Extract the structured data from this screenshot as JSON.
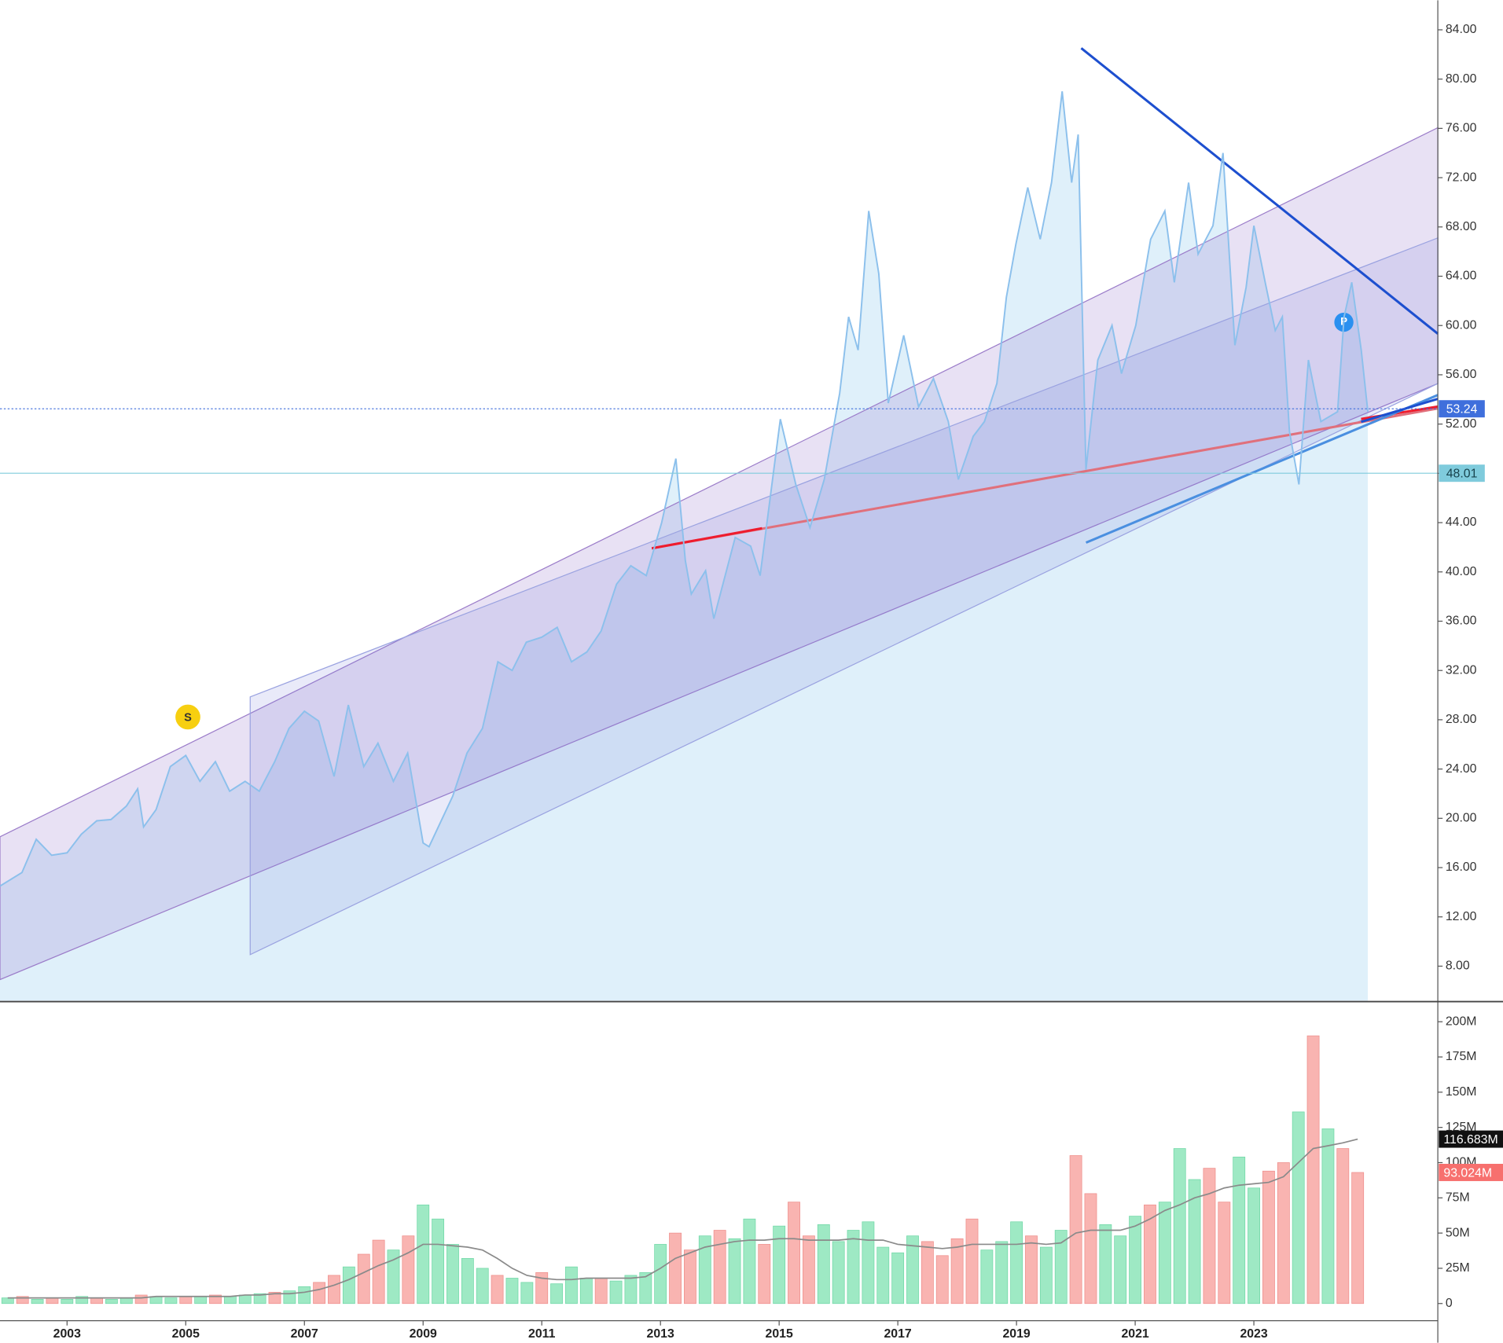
{
  "chart_data": [
    {
      "type": "area",
      "color": "#8cc0ec",
      "fill": "#dff0fa",
      "xlim": [
        2001.87,
        2026.1
      ],
      "ylim": [
        5.2,
        86.4
      ],
      "yticks": [
        {
          "value": 8,
          "label": "8.00"
        },
        {
          "value": 12,
          "label": "12.00"
        },
        {
          "value": 16,
          "label": "16.00"
        },
        {
          "value": 20,
          "label": "20.00"
        },
        {
          "value": 24,
          "label": "24.00"
        },
        {
          "value": 28,
          "label": "28.00"
        },
        {
          "value": 32,
          "label": "32.00"
        },
        {
          "value": 36,
          "label": "36.00"
        },
        {
          "value": 40,
          "label": "40.00"
        },
        {
          "value": 44,
          "label": "44.00"
        },
        {
          "value": 48,
          "label": "48.00"
        },
        {
          "value": 52,
          "label": "52.00"
        },
        {
          "value": 56,
          "label": "56.00"
        },
        {
          "value": 60,
          "label": "60.00"
        },
        {
          "value": 64,
          "label": "64.00"
        },
        {
          "value": 68,
          "label": "68.00"
        },
        {
          "value": 72,
          "label": "72.00"
        },
        {
          "value": 76,
          "label": "76.00"
        },
        {
          "value": 80,
          "label": "80.00"
        },
        {
          "value": 84,
          "label": "84.00"
        }
      ],
      "x": [
        2001.87,
        2002.24,
        2002.48,
        2002.74,
        2003.0,
        2003.24,
        2003.5,
        2003.74,
        2004.0,
        2004.19,
        2004.29,
        2004.5,
        2004.74,
        2005.0,
        2005.24,
        2005.5,
        2005.74,
        2006.0,
        2006.24,
        2006.5,
        2006.74,
        2007.0,
        2007.24,
        2007.5,
        2007.74,
        2008.0,
        2008.24,
        2008.5,
        2008.74,
        2009.0,
        2009.1,
        2009.5,
        2009.74,
        2010.0,
        2010.26,
        2010.5,
        2010.74,
        2011.0,
        2011.26,
        2011.5,
        2011.76,
        2012.0,
        2012.26,
        2012.5,
        2012.76,
        2013.02,
        2013.26,
        2013.42,
        2013.52,
        2013.76,
        2013.9,
        2014.26,
        2014.52,
        2014.68,
        2015.02,
        2015.28,
        2015.52,
        2015.76,
        2016.02,
        2016.17,
        2016.33,
        2016.51,
        2016.68,
        2016.84,
        2017.1,
        2017.35,
        2017.6,
        2017.85,
        2018.02,
        2018.27,
        2018.46,
        2018.67,
        2018.83,
        2018.99,
        2019.19,
        2019.4,
        2019.59,
        2019.77,
        2019.93,
        2020.04,
        2020.17,
        2020.37,
        2020.61,
        2020.77,
        2021.01,
        2021.26,
        2021.5,
        2021.66,
        2021.9,
        2022.06,
        2022.31,
        2022.48,
        2022.68,
        2022.87,
        2023.0,
        2023.19,
        2023.36,
        2023.48,
        2023.6,
        2023.76,
        2023.92,
        2024.13,
        2024.41,
        2024.52,
        2024.65,
        2024.81,
        2024.92
      ],
      "values": [
        14.5,
        15.6,
        18.3,
        17,
        17.2,
        18.7,
        19.8,
        19.9,
        21,
        22.4,
        19.3,
        20.7,
        24.2,
        25.1,
        23,
        24.6,
        22.2,
        23,
        22.2,
        24.6,
        27.3,
        28.7,
        27.9,
        23.4,
        29.2,
        24.2,
        26.1,
        23,
        25.3,
        18,
        17.7,
        21.8,
        25.3,
        27.3,
        32.7,
        32,
        34.3,
        34.7,
        35.5,
        32.7,
        33.5,
        35.2,
        39,
        40.5,
        39.7,
        44,
        49.2,
        40.9,
        38.2,
        40.1,
        36.2,
        42.8,
        42.1,
        39.7,
        52.4,
        47.1,
        43.6,
        47.5,
        54.5,
        60.7,
        58,
        69.3,
        64.2,
        53.7,
        59.2,
        53.4,
        55.7,
        52.2,
        47.5,
        51,
        52.2,
        55.3,
        62.3,
        66.6,
        71.2,
        67,
        71.6,
        79,
        71.6,
        75.5,
        48.3,
        57.2,
        60,
        56.1,
        60,
        67,
        69.3,
        63.5,
        71.6,
        65.8,
        68.1,
        74,
        58.4,
        63.1,
        68.1,
        63.5,
        59.6,
        60.7,
        51.4,
        47.1,
        57.2,
        52.2,
        53,
        60.7,
        63.5,
        58,
        53
      ],
      "markers": [
        {
          "value": 53.24,
          "color": "#3f6fdc",
          "dashed": true
        },
        {
          "value": 48.01,
          "color": "#7fcbdc",
          "dashed": false
        }
      ]
    },
    {
      "type": "bar",
      "xlim": [
        2001.87,
        2026.1
      ],
      "xticks": [
        2003,
        2005,
        2007,
        2009,
        2011,
        2013,
        2015,
        2017,
        2019,
        2021,
        2023
      ],
      "ylim": [
        -12.2,
        213.6
      ],
      "yticks": [
        0,
        {
          "value": 25,
          "label": "25M"
        },
        {
          "value": 50,
          "label": "50M"
        },
        {
          "value": 75,
          "label": "75M"
        },
        {
          "value": 100,
          "label": "100M"
        },
        {
          "value": 125,
          "label": "125M"
        },
        {
          "value": 150,
          "label": "150M"
        },
        {
          "value": 175,
          "label": "175M"
        },
        {
          "value": 200,
          "label": "200M"
        }
      ],
      "x": [
        2002.0,
        2002.25,
        2002.5,
        2002.75,
        2003.0,
        2003.25,
        2003.5,
        2003.75,
        2004.0,
        2004.25,
        2004.5,
        2004.75,
        2005.0,
        2005.25,
        2005.5,
        2005.75,
        2006.0,
        2006.25,
        2006.5,
        2006.75,
        2007.0,
        2007.25,
        2007.5,
        2007.75,
        2008.0,
        2008.25,
        2008.5,
        2008.75,
        2009.0,
        2009.25,
        2009.5,
        2009.75,
        2010.0,
        2010.25,
        2010.5,
        2010.75,
        2011.0,
        2011.25,
        2011.5,
        2011.75,
        2012.0,
        2012.25,
        2012.5,
        2012.75,
        2013.0,
        2013.25,
        2013.5,
        2013.75,
        2014.0,
        2014.25,
        2014.5,
        2014.75,
        2015.0,
        2015.25,
        2015.5,
        2015.75,
        2016.0,
        2016.25,
        2016.5,
        2016.75,
        2017.0,
        2017.25,
        2017.5,
        2017.75,
        2018.0,
        2018.25,
        2018.5,
        2018.75,
        2019.0,
        2019.25,
        2019.5,
        2019.75,
        2020.0,
        2020.25,
        2020.5,
        2020.75,
        2021.0,
        2021.25,
        2021.5,
        2021.75,
        2022.0,
        2022.25,
        2022.5,
        2022.75,
        2023.0,
        2023.25,
        2023.5,
        2023.75,
        2024.0,
        2024.25,
        2024.5,
        2024.75
      ],
      "values": [
        4,
        5,
        3,
        4,
        3,
        5,
        4,
        3,
        4,
        6,
        5,
        4,
        5,
        5,
        6,
        5,
        6,
        7,
        8,
        9,
        12,
        15,
        20,
        26,
        35,
        45,
        38,
        48,
        70,
        60,
        42,
        32,
        25,
        20,
        18,
        15,
        22,
        14,
        26,
        18,
        18,
        16,
        20,
        22,
        42,
        50,
        38,
        48,
        52,
        46,
        60,
        42,
        55,
        72,
        48,
        56,
        44,
        52,
        58,
        40,
        36,
        48,
        44,
        34,
        46,
        60,
        38,
        44,
        58,
        48,
        40,
        52,
        105,
        78,
        56,
        48,
        62,
        70,
        72,
        110,
        88,
        96,
        72,
        104,
        82,
        94,
        100,
        136,
        190,
        124,
        110,
        93.024
      ],
      "colors": [
        "#9ee9c4",
        "#f9b4b1",
        "#9ee9c4",
        "#f9b4b1",
        "#9ee9c4",
        "#9ee9c4",
        "#f9b4b1",
        "#9ee9c4",
        "#9ee9c4",
        "#f9b4b1",
        "#9ee9c4",
        "#9ee9c4",
        "#f9b4b1",
        "#9ee9c4",
        "#f9b4b1",
        "#9ee9c4",
        "#9ee9c4",
        "#9ee9c4",
        "#f9b4b1",
        "#9ee9c4",
        "#9ee9c4",
        "#f9b4b1",
        "#f9b4b1",
        "#9ee9c4",
        "#f9b4b1",
        "#f9b4b1",
        "#9ee9c4",
        "#f9b4b1",
        "#9ee9c4",
        "#9ee9c4",
        "#9ee9c4",
        "#9ee9c4",
        "#9ee9c4",
        "#f9b4b1",
        "#9ee9c4",
        "#9ee9c4",
        "#f9b4b1",
        "#9ee9c4",
        "#9ee9c4",
        "#9ee9c4",
        "#f9b4b1",
        "#9ee9c4",
        "#9ee9c4",
        "#9ee9c4",
        "#9ee9c4",
        "#f9b4b1",
        "#f9b4b1",
        "#9ee9c4",
        "#f9b4b1",
        "#9ee9c4",
        "#9ee9c4",
        "#f9b4b1",
        "#9ee9c4",
        "#f9b4b1",
        "#f9b4b1",
        "#9ee9c4",
        "#9ee9c4",
        "#9ee9c4",
        "#9ee9c4",
        "#9ee9c4",
        "#9ee9c4",
        "#9ee9c4",
        "#f9b4b1",
        "#f9b4b1",
        "#f9b4b1",
        "#f9b4b1",
        "#9ee9c4",
        "#9ee9c4",
        "#9ee9c4",
        "#f9b4b1",
        "#9ee9c4",
        "#9ee9c4",
        "#f9b4b1",
        "#f9b4b1",
        "#9ee9c4",
        "#9ee9c4",
        "#9ee9c4",
        "#f9b4b1",
        "#9ee9c4",
        "#9ee9c4",
        "#9ee9c4",
        "#f9b4b1",
        "#f9b4b1",
        "#9ee9c4",
        "#9ee9c4",
        "#f9b4b1",
        "#f9b4b1",
        "#9ee9c4",
        "#f9b4b1",
        "#9ee9c4",
        "#f9b4b1",
        "#f9b4b1"
      ],
      "ma": {
        "color": "#8a8a8a",
        "values": [
          4,
          4,
          4,
          4,
          4,
          4,
          4,
          4,
          4,
          4,
          5,
          5,
          5,
          5,
          5,
          5,
          6,
          6,
          7,
          7,
          8,
          10,
          13,
          17,
          22,
          27,
          31,
          36,
          42,
          42,
          41,
          40,
          38,
          32,
          25,
          20,
          18,
          17,
          17,
          18,
          18,
          18,
          18,
          19,
          25,
          32,
          36,
          40,
          42,
          44,
          45,
          45,
          46,
          46,
          45,
          45,
          45,
          46,
          45,
          45,
          42,
          41,
          40,
          39,
          40,
          42,
          42,
          42,
          42,
          43,
          42,
          43,
          50,
          52,
          52,
          52,
          55,
          60,
          66,
          70,
          75,
          78,
          82,
          84,
          85,
          86,
          90,
          100,
          110,
          112,
          114,
          116.683
        ]
      },
      "markers": [
        {
          "value": 116.683,
          "label": "116.683M",
          "color": "#111111"
        },
        {
          "value": 93.024,
          "label": "93.024M",
          "color": "#f7706e"
        }
      ]
    }
  ]
}
